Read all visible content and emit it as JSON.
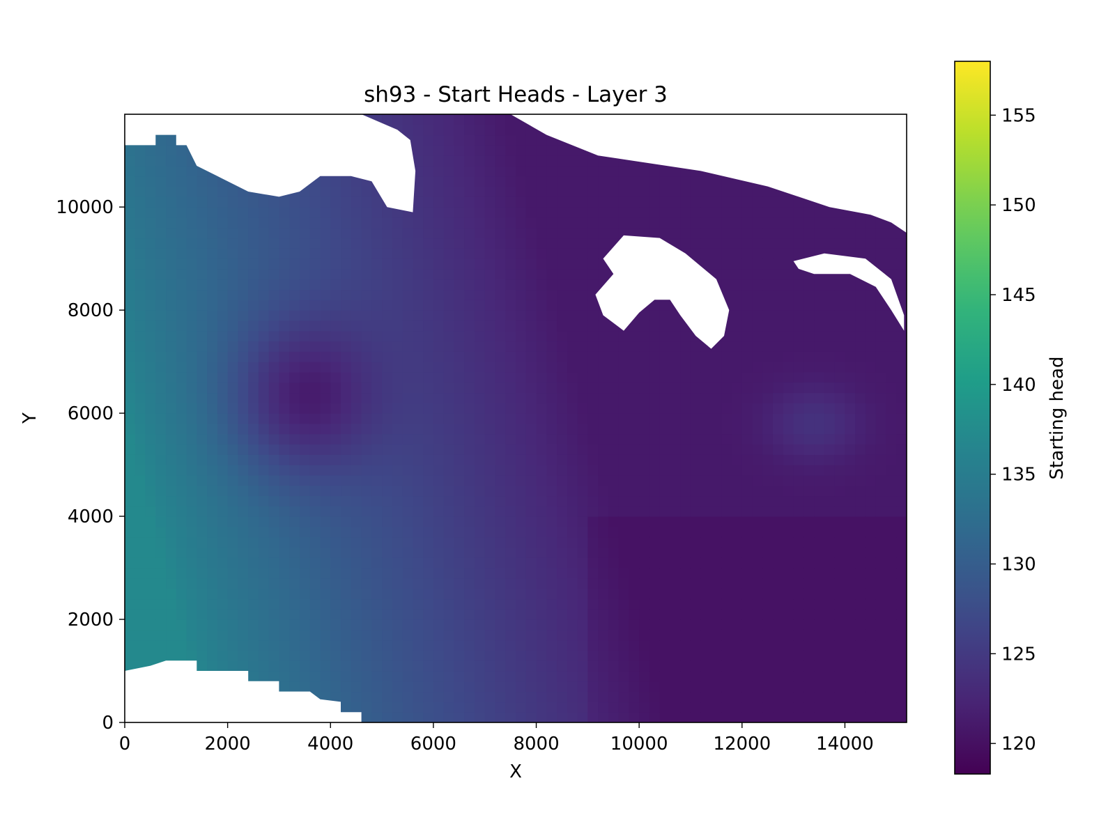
{
  "chart_data": {
    "type": "heatmap",
    "title": "sh93 - Start Heads - Layer 3",
    "xlabel": "X",
    "ylabel": "Y",
    "xlim": [
      0,
      15200
    ],
    "ylim": [
      0,
      11800
    ],
    "xticks": [
      0,
      2000,
      4000,
      6000,
      8000,
      10000,
      12000,
      14000
    ],
    "yticks": [
      0,
      2000,
      4000,
      6000,
      8000,
      10000
    ],
    "colormap": "viridis",
    "colorbar": {
      "label": "Starting head",
      "range": [
        118.3,
        158.0
      ],
      "ticks": [
        120,
        125,
        130,
        135,
        140,
        145,
        150,
        155
      ]
    },
    "field_description": {
      "west_edge_value": 137,
      "east_value": 121,
      "local_low_center": {
        "x": 3400,
        "y": 6300,
        "value": 119.5
      },
      "local_high_center": {
        "x": 13400,
        "y": 5800,
        "value": 124
      }
    },
    "nodata_regions": [
      {
        "name": "north-west",
        "polygon": [
          [
            0,
            11800
          ],
          [
            0,
            11200
          ],
          [
            600,
            11200
          ],
          [
            600,
            11400
          ],
          [
            1000,
            11400
          ],
          [
            1000,
            11200
          ],
          [
            1200,
            11200
          ],
          [
            1400,
            10800
          ],
          [
            1800,
            10600
          ],
          [
            2400,
            10300
          ],
          [
            3000,
            10200
          ],
          [
            3400,
            10300
          ],
          [
            3800,
            10600
          ],
          [
            4400,
            10600
          ],
          [
            4800,
            10500
          ],
          [
            5100,
            10000
          ],
          [
            5600,
            9900
          ],
          [
            5650,
            10700
          ],
          [
            5550,
            11300
          ],
          [
            5300,
            11500
          ],
          [
            4600,
            11800
          ]
        ]
      },
      {
        "name": "north-east",
        "polygon": [
          [
            7500,
            11800
          ],
          [
            8200,
            11400
          ],
          [
            9200,
            11000
          ],
          [
            11200,
            10700
          ],
          [
            12500,
            10400
          ],
          [
            13700,
            10000
          ],
          [
            14500,
            9850
          ],
          [
            14900,
            9700
          ],
          [
            15200,
            9500
          ],
          [
            15200,
            11800
          ]
        ]
      },
      {
        "name": "south-west",
        "polygon": [
          [
            0,
            0
          ],
          [
            0,
            1000
          ],
          [
            500,
            1100
          ],
          [
            800,
            1200
          ],
          [
            1400,
            1200
          ],
          [
            1400,
            1000
          ],
          [
            2400,
            1000
          ],
          [
            2400,
            800
          ],
          [
            3000,
            800
          ],
          [
            3000,
            600
          ],
          [
            3600,
            600
          ],
          [
            3800,
            450
          ],
          [
            4200,
            400
          ],
          [
            4200,
            200
          ],
          [
            4600,
            200
          ],
          [
            4600,
            0
          ]
        ]
      },
      {
        "name": "central-hook",
        "polygon": [
          [
            9300,
            9000
          ],
          [
            9700,
            9450
          ],
          [
            10400,
            9400
          ],
          [
            10900,
            9100
          ],
          [
            11500,
            8600
          ],
          [
            11750,
            8000
          ],
          [
            11650,
            7500
          ],
          [
            11400,
            7250
          ],
          [
            11100,
            7500
          ],
          [
            10800,
            7900
          ],
          [
            10600,
            8200
          ],
          [
            10300,
            8200
          ],
          [
            10000,
            7950
          ],
          [
            9700,
            7600
          ],
          [
            9300,
            7900
          ],
          [
            9150,
            8300
          ],
          [
            9500,
            8700
          ]
        ]
      },
      {
        "name": "east-hook",
        "polygon": [
          [
            13000,
            8950
          ],
          [
            13600,
            9100
          ],
          [
            14400,
            9000
          ],
          [
            14900,
            8600
          ],
          [
            15150,
            7900
          ],
          [
            15150,
            7600
          ],
          [
            14900,
            8000
          ],
          [
            14600,
            8450
          ],
          [
            14100,
            8700
          ],
          [
            13400,
            8700
          ],
          [
            13100,
            8800
          ]
        ]
      }
    ]
  }
}
